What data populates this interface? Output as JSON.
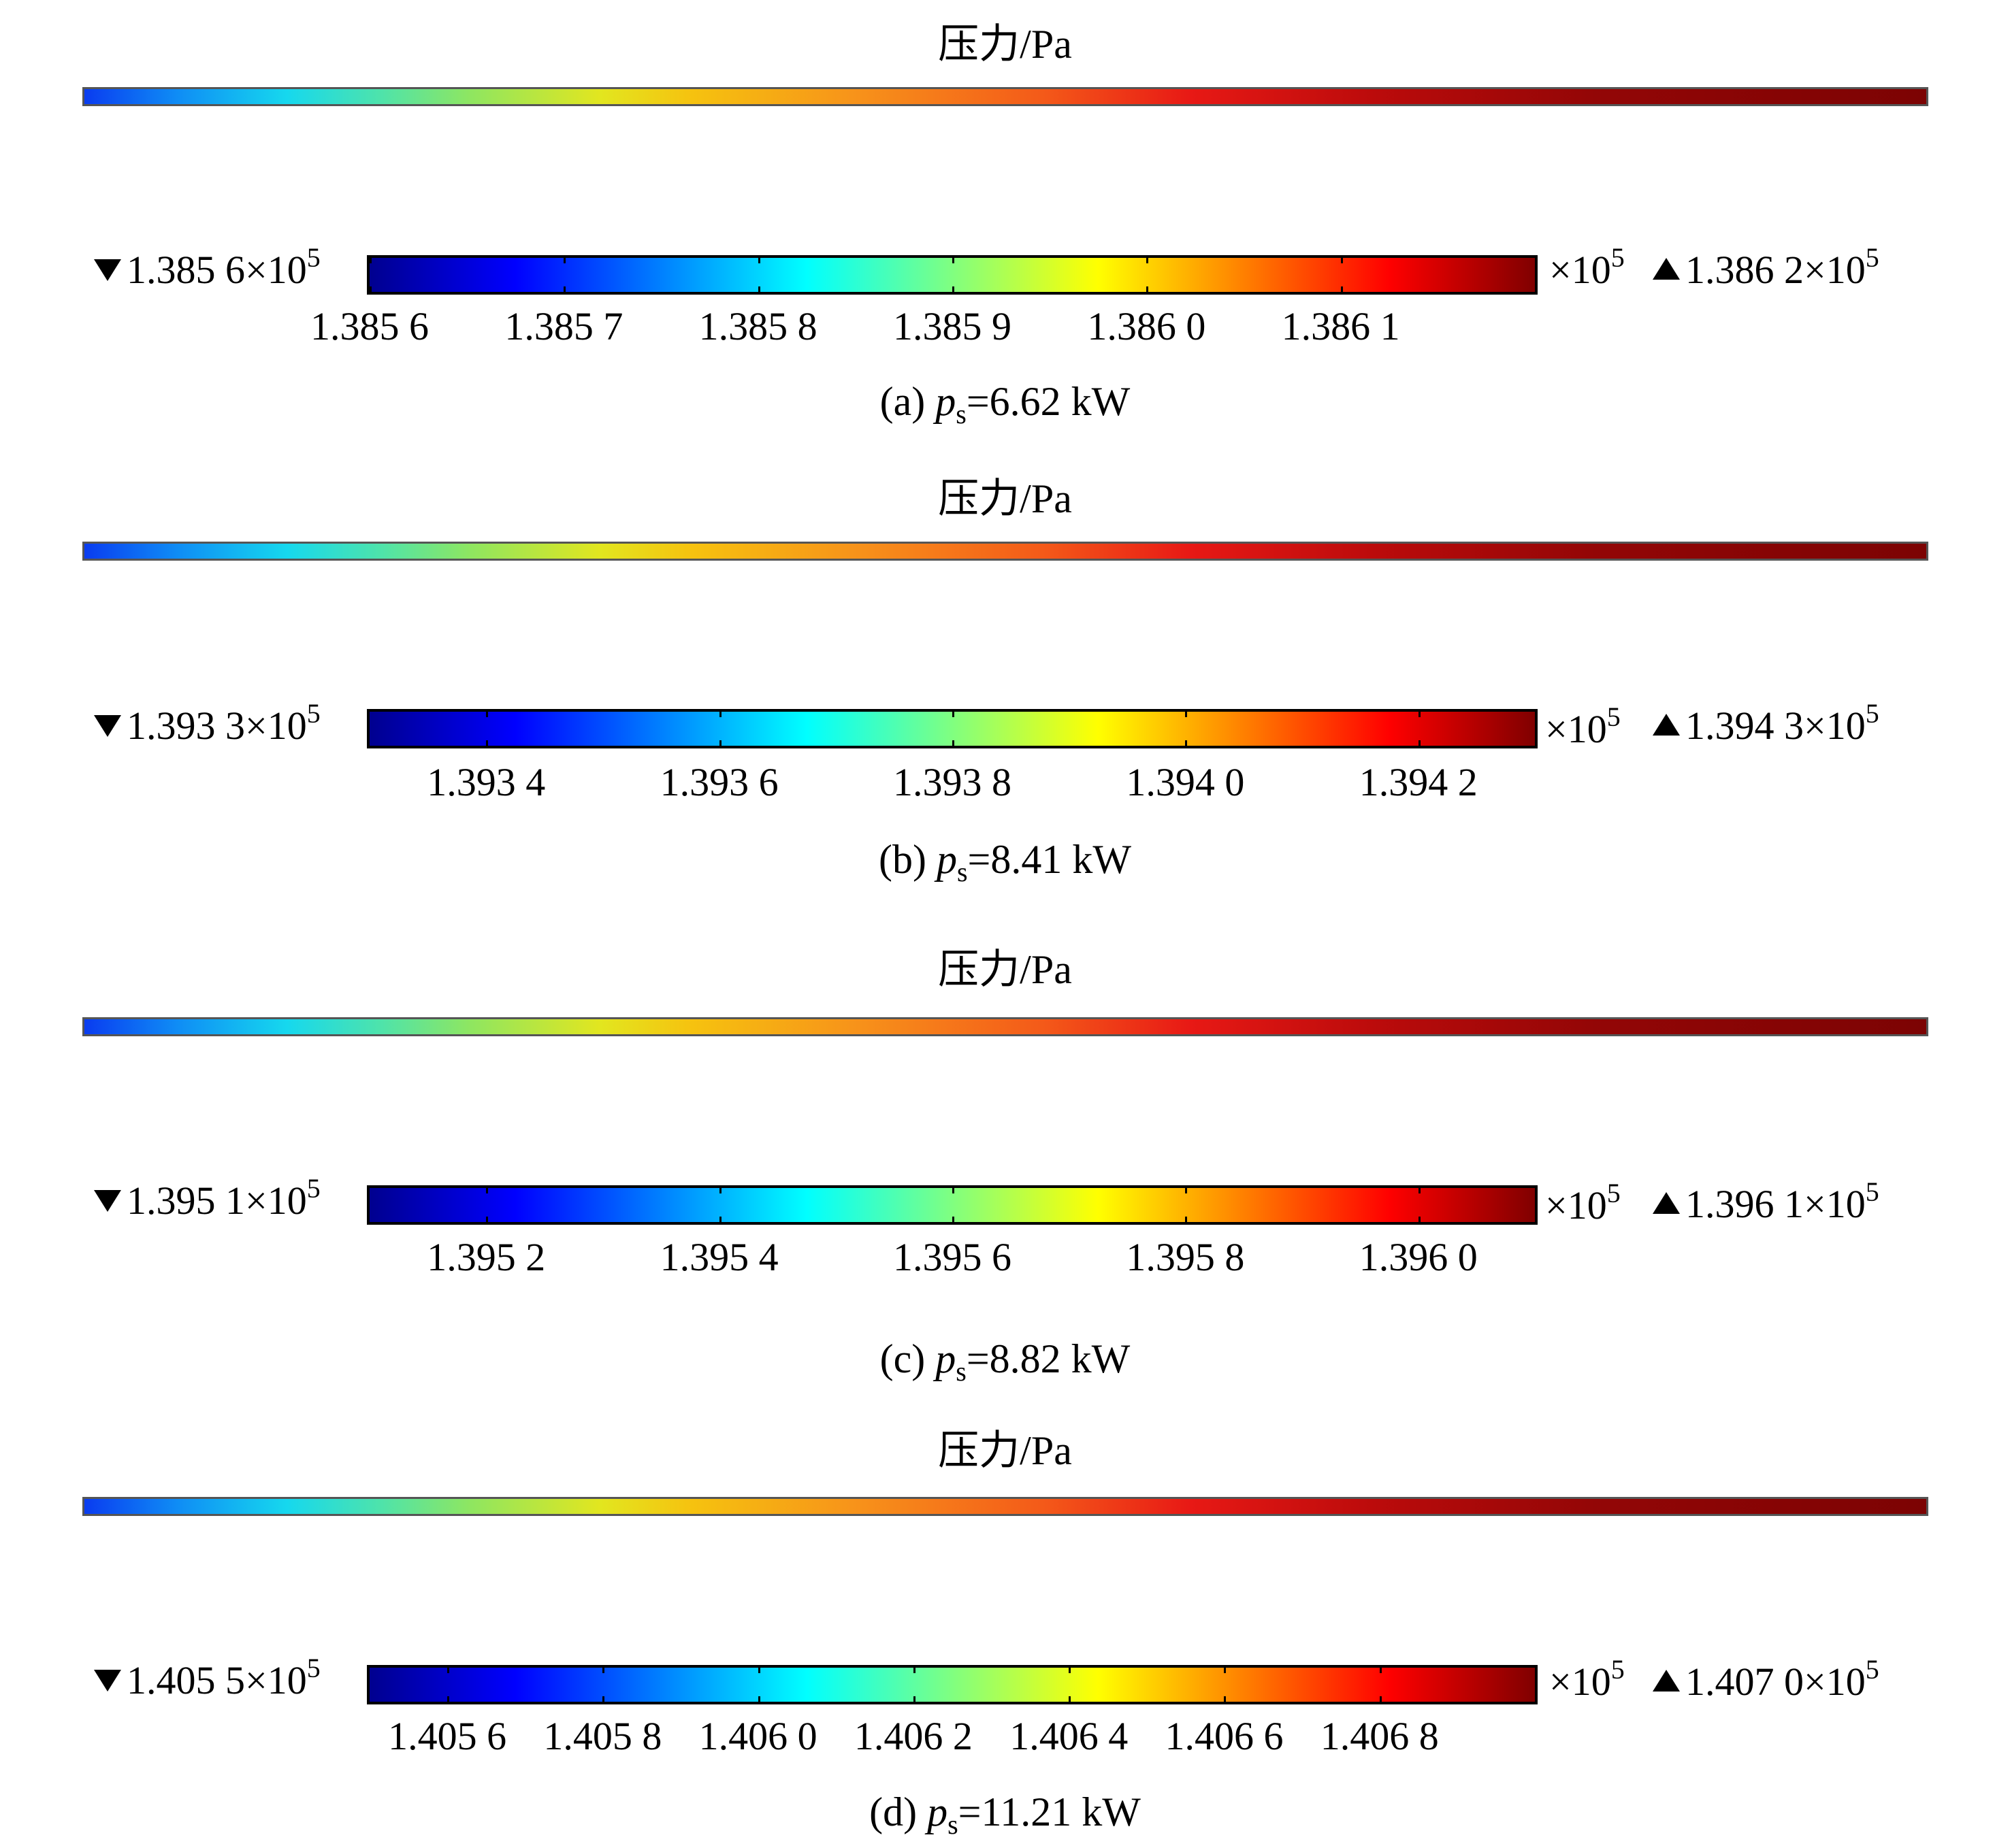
{
  "panels": [
    {
      "title": "压力/Pa",
      "min_label": "1.385 6×10",
      "max_label": "1.386 2×10",
      "exp": "5",
      "scale_label": "×10",
      "scale_exp": "5",
      "min": 1.3856,
      "max": 1.3862,
      "ticks": [
        {
          "value": 1.3856,
          "label": "1.385 6"
        },
        {
          "value": 1.3857,
          "label": "1.385 7"
        },
        {
          "value": 1.3858,
          "label": "1.385 8"
        },
        {
          "value": 1.3859,
          "label": "1.385 9"
        },
        {
          "value": 1.386,
          "label": "1.386 0"
        },
        {
          "value": 1.3861,
          "label": "1.386 1"
        }
      ],
      "caption_prefix": "(a) ",
      "caption_var": "p",
      "caption_sub": "s",
      "caption_rest": "=6.62 kW"
    },
    {
      "title": "压力/Pa",
      "min_label": "1.393 3×10",
      "max_label": "1.394 3×10",
      "exp": "5",
      "scale_label": "×10",
      "scale_exp": "5",
      "min": 1.3933,
      "max": 1.3943,
      "ticks": [
        {
          "value": 1.3934,
          "label": "1.393 4"
        },
        {
          "value": 1.3936,
          "label": "1.393 6"
        },
        {
          "value": 1.3938,
          "label": "1.393 8"
        },
        {
          "value": 1.394,
          "label": "1.394 0"
        },
        {
          "value": 1.3942,
          "label": "1.394 2"
        }
      ],
      "caption_prefix": "(b) ",
      "caption_var": "p",
      "caption_sub": "s",
      "caption_rest": "=8.41 kW"
    },
    {
      "title": "压力/Pa",
      "min_label": "1.395 1×10",
      "max_label": "1.396 1×10",
      "exp": "5",
      "scale_label": "×10",
      "scale_exp": "5",
      "min": 1.3951,
      "max": 1.3961,
      "ticks": [
        {
          "value": 1.3952,
          "label": "1.395 2"
        },
        {
          "value": 1.3954,
          "label": "1.395 4"
        },
        {
          "value": 1.3956,
          "label": "1.395 6"
        },
        {
          "value": 1.3958,
          "label": "1.395 8"
        },
        {
          "value": 1.396,
          "label": "1.396 0"
        }
      ],
      "caption_prefix": "(c) ",
      "caption_var": "p",
      "caption_sub": "s",
      "caption_rest": "=8.82 kW"
    },
    {
      "title": "压力/Pa",
      "min_label": "1.405 5×10",
      "max_label": "1.407 0×10",
      "exp": "5",
      "scale_label": "×10",
      "scale_exp": "5",
      "min": 1.4055,
      "max": 1.407,
      "ticks": [
        {
          "value": 1.4056,
          "label": "1.405 6"
        },
        {
          "value": 1.4058,
          "label": "1.405 8"
        },
        {
          "value": 1.406,
          "label": "1.406 0"
        },
        {
          "value": 1.4062,
          "label": "1.406 2"
        },
        {
          "value": 1.4064,
          "label": "1.406 4"
        },
        {
          "value": 1.4066,
          "label": "1.406 6"
        },
        {
          "value": 1.4068,
          "label": "1.406 8"
        }
      ],
      "caption_prefix": "(d) ",
      "caption_var": "p",
      "caption_sub": "s",
      "caption_rest": "=11.21 kW"
    }
  ]
}
